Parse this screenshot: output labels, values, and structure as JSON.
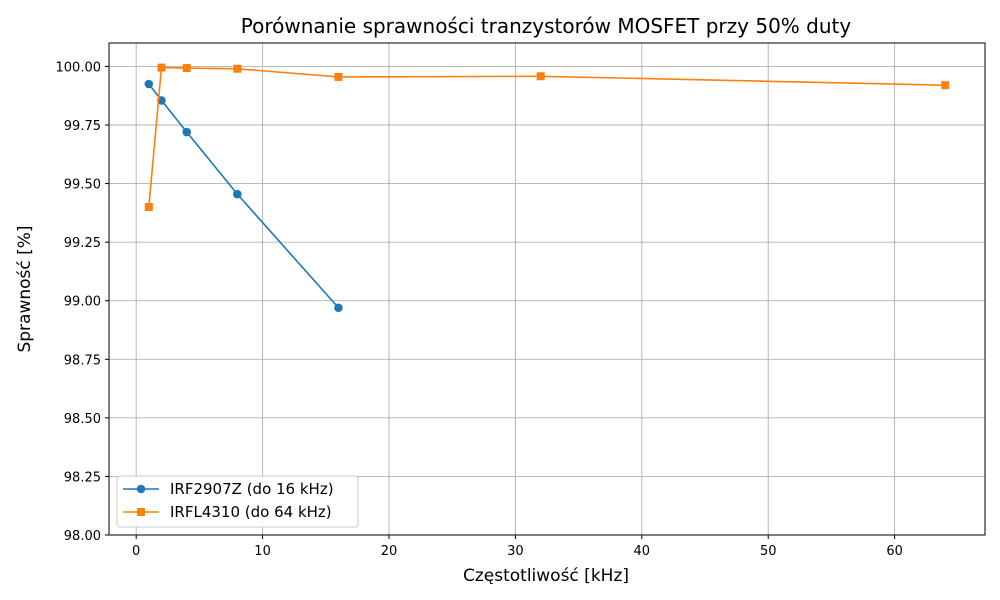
{
  "chart_data": {
    "type": "line",
    "title": "Porównanie sprawności tranzystorów MOSFET przy 50% duty",
    "xlabel": "Częstotliwość [kHz]",
    "ylabel": "Sprawność [%]",
    "xlim": [
      -2.15,
      67.15
    ],
    "ylim": [
      98.0,
      100.1
    ],
    "x_ticks": [
      0,
      10,
      20,
      30,
      40,
      50,
      60
    ],
    "x_tick_labels": [
      "0",
      "10",
      "20",
      "30",
      "40",
      "50",
      "60"
    ],
    "y_ticks": [
      98.0,
      98.25,
      98.5,
      98.75,
      99.0,
      99.25,
      99.5,
      99.75,
      100.0
    ],
    "y_tick_labels": [
      "98.00",
      "98.25",
      "98.50",
      "98.75",
      "99.00",
      "99.25",
      "99.50",
      "99.75",
      "100.00"
    ],
    "grid": true,
    "legend_position": "lower-left",
    "series": [
      {
        "name": "IRF2907Z (do 16 kHz)",
        "color": "#1f77b4",
        "marker": "circle",
        "x": [
          1,
          2,
          4,
          8,
          16
        ],
        "y": [
          99.925,
          99.855,
          99.72,
          99.455,
          98.97
        ]
      },
      {
        "name": "IRFL4310 (do 64 kHz)",
        "color": "#ff7f0e",
        "marker": "square",
        "x": [
          1,
          2,
          4,
          8,
          16,
          32,
          64
        ],
        "y": [
          99.4,
          99.995,
          99.993,
          99.99,
          99.955,
          99.958,
          99.92
        ]
      }
    ]
  }
}
